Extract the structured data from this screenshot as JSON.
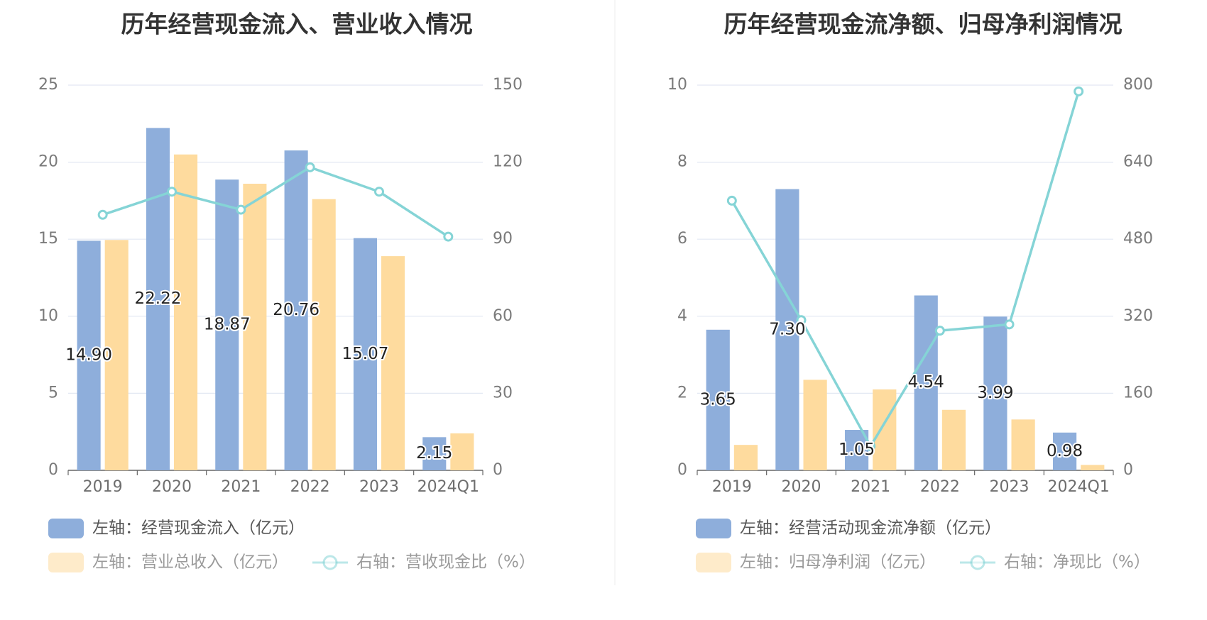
{
  "colors": {
    "bar1": "#8eaedb",
    "bar2": "#fedb9e",
    "line": "#85d4d6",
    "grid": "#e3e8f3",
    "axis": "#666666",
    "legend_text": "#555555",
    "legend_text_light": "#9a9a9a"
  },
  "chart_data": [
    {
      "type": "bar",
      "title": "历年经营现金流入、营业收入情况",
      "categories": [
        "2019",
        "2020",
        "2021",
        "2022",
        "2023",
        "2024Q1"
      ],
      "ylim_left": [
        0,
        25
      ],
      "yticks_left": [
        "0",
        "5",
        "10",
        "15",
        "20",
        "25"
      ],
      "ylim_right": [
        0,
        150
      ],
      "yticks_right": [
        "0",
        "30",
        "60",
        "90",
        "120",
        "150"
      ],
      "grid": true,
      "series": [
        {
          "name": "左轴：经营现金流入（亿元）",
          "type": "bar",
          "axis": "left",
          "color_key": "bar1",
          "values": [
            14.9,
            22.22,
            18.87,
            20.76,
            15.07,
            2.15
          ],
          "labels": [
            "14.90",
            "22.22",
            "18.87",
            "20.76",
            "15.07",
            "2.15"
          ]
        },
        {
          "name": "左轴：营业总收入（亿元）",
          "type": "bar",
          "axis": "left",
          "color_key": "bar2",
          "values": [
            14.95,
            20.5,
            18.6,
            17.6,
            13.9,
            2.4
          ]
        },
        {
          "name": "右轴：营收现金比（%）",
          "type": "line",
          "axis": "right",
          "color_key": "line",
          "values": [
            99.5,
            108.5,
            101.5,
            118,
            108.5,
            91
          ]
        }
      ],
      "legend": [
        {
          "label": "左轴：经营现金流入（亿元）",
          "kind": "bar",
          "color_key": "bar1",
          "active": true
        },
        {
          "label": "左轴：营业总收入（亿元）",
          "kind": "bar",
          "color_key": "bar2",
          "active": false
        },
        {
          "label": "右轴：营收现金比（%）",
          "kind": "line",
          "color_key": "line",
          "active": false
        }
      ]
    },
    {
      "type": "bar",
      "title": "历年经营现金流净额、归母净利润情况",
      "categories": [
        "2019",
        "2020",
        "2021",
        "2022",
        "2023",
        "2024Q1"
      ],
      "ylim_left": [
        0,
        10
      ],
      "yticks_left": [
        "0",
        "2",
        "4",
        "6",
        "8",
        "10"
      ],
      "ylim_right": [
        0,
        800
      ],
      "yticks_right": [
        "0",
        "160",
        "320",
        "480",
        "640",
        "800"
      ],
      "grid": true,
      "series": [
        {
          "name": "左轴：经营活动现金流净额（亿元）",
          "type": "bar",
          "axis": "left",
          "color_key": "bar1",
          "values": [
            3.65,
            7.3,
            1.05,
            4.54,
            3.99,
            0.98
          ],
          "labels": [
            "3.65",
            "7.30",
            "1.05",
            "4.54",
            "3.99",
            "0.98"
          ]
        },
        {
          "name": "左轴：归母净利润（亿元）",
          "type": "bar",
          "axis": "left",
          "color_key": "bar2",
          "values": [
            0.66,
            2.35,
            2.1,
            1.57,
            1.32,
            0.14
          ]
        },
        {
          "name": "右轴：净现比（%）",
          "type": "line",
          "axis": "right",
          "color_key": "line",
          "values": [
            560,
            312,
            50,
            290,
            303,
            787
          ]
        }
      ],
      "legend": [
        {
          "label": "左轴：经营活动现金流净额（亿元）",
          "kind": "bar",
          "color_key": "bar1",
          "active": true
        },
        {
          "label": "左轴：归母净利润（亿元）",
          "kind": "bar",
          "color_key": "bar2",
          "active": false
        },
        {
          "label": "右轴：净现比（%）",
          "kind": "line",
          "color_key": "line",
          "active": false
        }
      ]
    }
  ]
}
